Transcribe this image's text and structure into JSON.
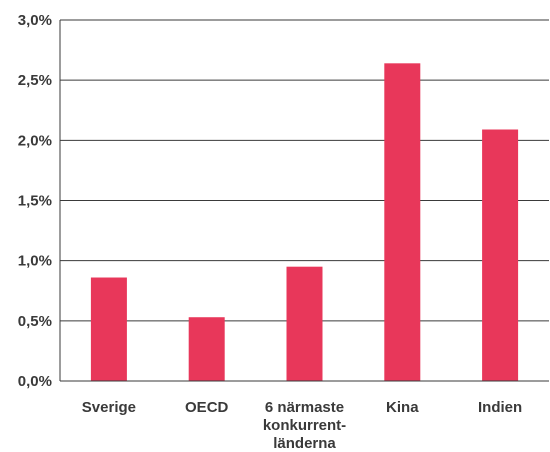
{
  "chart_data": {
    "type": "bar",
    "categories": [
      [
        "Sverige"
      ],
      [
        "OECD"
      ],
      [
        "6 närmaste",
        "konkurrent-",
        "länderna"
      ],
      [
        "Kina"
      ],
      [
        "Indien"
      ]
    ],
    "values": [
      0.86,
      0.53,
      0.95,
      2.64,
      2.09
    ],
    "y_ticks": [
      "0,0%",
      "0,5%",
      "1,0%",
      "1,5%",
      "2,0%",
      "2,5%",
      "3,0%"
    ],
    "ylim": [
      0,
      3.0
    ],
    "grid": true,
    "bar_color": "#e8375a",
    "axis_color": "#3a3a3a"
  }
}
